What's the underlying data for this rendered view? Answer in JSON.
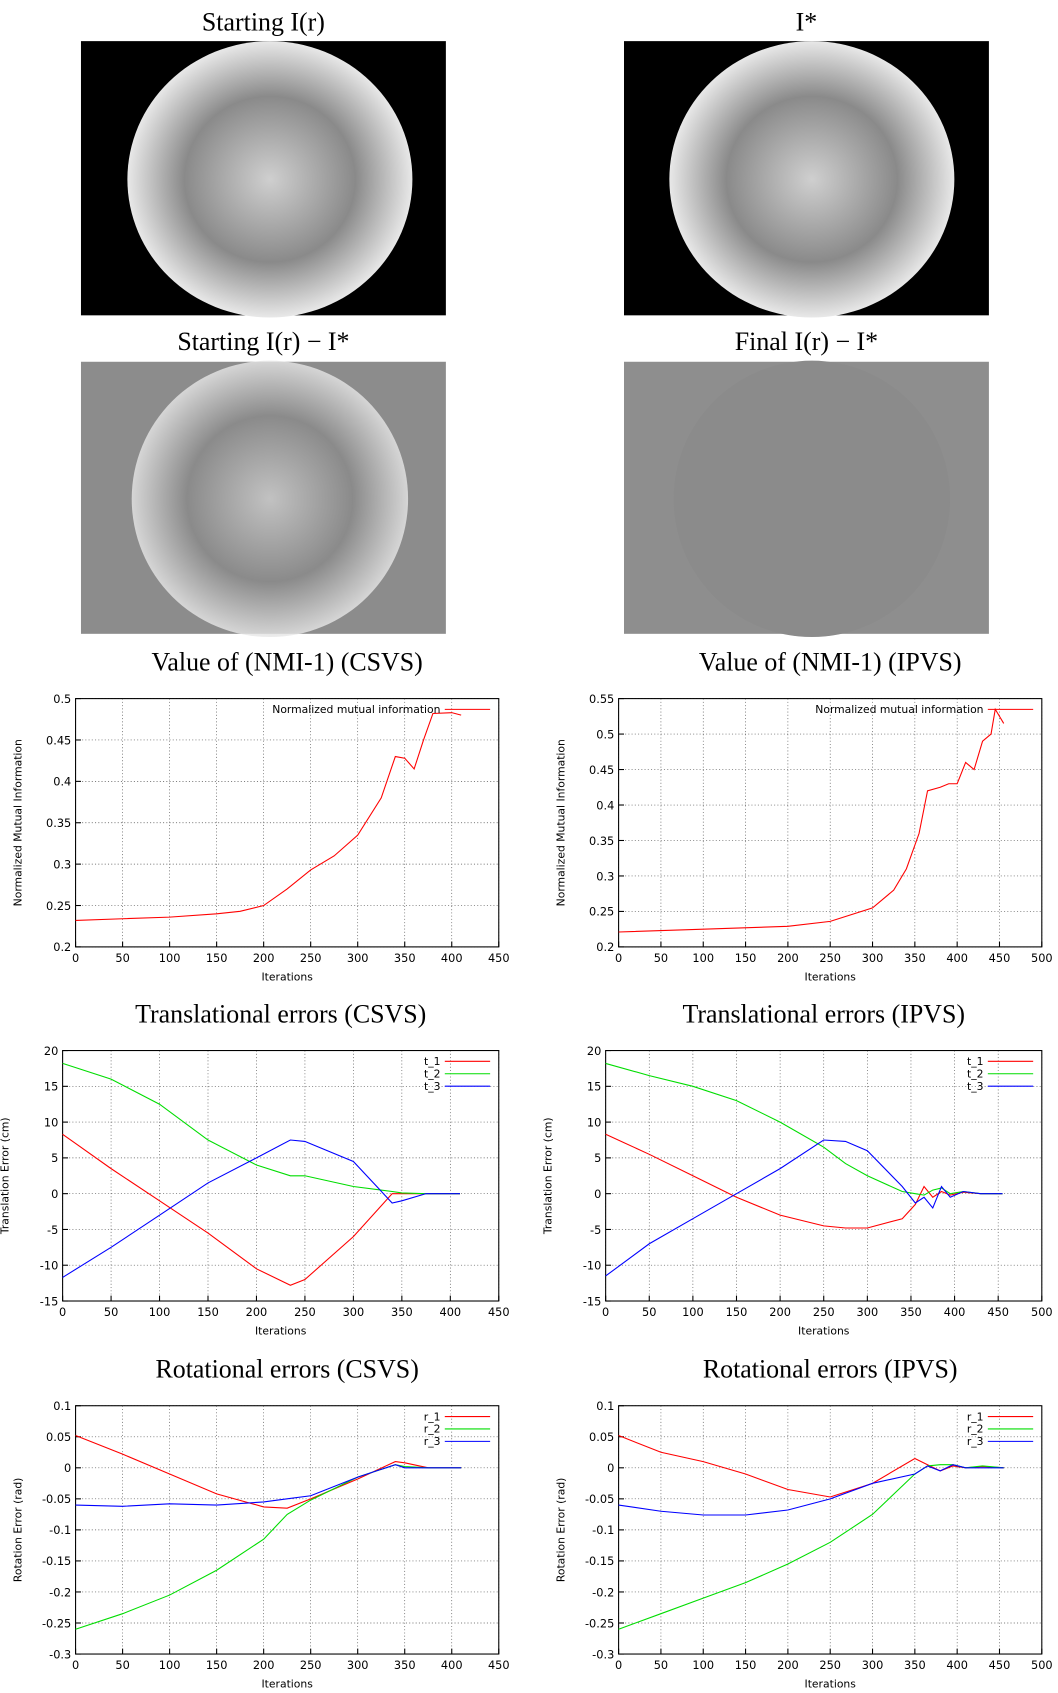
{
  "images": [
    {
      "title": "Starting I(r)"
    },
    {
      "title": "I*"
    },
    {
      "title": "Starting I(r) − I*"
    },
    {
      "title": "Final I(r) − I*"
    }
  ],
  "chart_data": [
    {
      "type": "line",
      "title": "Value of (NMI-1) (CSVS)",
      "xlabel": "Iterations",
      "ylabel": "Normalized Mutual Information",
      "xlim": [
        0,
        450
      ],
      "ylim": [
        0.2,
        0.5
      ],
      "xticks": [
        0,
        50,
        100,
        150,
        200,
        250,
        300,
        350,
        400,
        450
      ],
      "yticks": [
        0.2,
        0.25,
        0.3,
        0.35,
        0.4,
        0.45,
        0.5
      ],
      "grid": true,
      "legend": "upper right",
      "x": [
        0,
        50,
        100,
        150,
        175,
        200,
        225,
        250,
        275,
        300,
        325,
        340,
        350,
        360,
        370,
        380,
        400,
        410
      ],
      "series": [
        {
          "name": "Normalized mutual information",
          "color": "#ff0000",
          "values": [
            0.232,
            0.234,
            0.236,
            0.24,
            0.243,
            0.25,
            0.27,
            0.293,
            0.31,
            0.335,
            0.38,
            0.43,
            0.428,
            0.415,
            0.45,
            0.482,
            0.483,
            0.48
          ]
        }
      ]
    },
    {
      "type": "line",
      "title": "Value of (NMI-1) (IPVS)",
      "xlabel": "Iterations",
      "ylabel": "Normalized Mutual Information",
      "xlim": [
        0,
        500
      ],
      "ylim": [
        0.2,
        0.55
      ],
      "xticks": [
        0,
        50,
        100,
        150,
        200,
        250,
        300,
        350,
        400,
        450,
        500
      ],
      "yticks": [
        0.2,
        0.25,
        0.3,
        0.35,
        0.4,
        0.45,
        0.5,
        0.55
      ],
      "grid": true,
      "legend": "upper right",
      "x": [
        0,
        100,
        200,
        250,
        300,
        325,
        340,
        355,
        365,
        380,
        390,
        400,
        410,
        420,
        430,
        440,
        445,
        455
      ],
      "series": [
        {
          "name": "Normalized mutual information",
          "color": "#ff0000",
          "values": [
            0.221,
            0.225,
            0.229,
            0.236,
            0.255,
            0.28,
            0.31,
            0.36,
            0.42,
            0.425,
            0.43,
            0.43,
            0.46,
            0.45,
            0.49,
            0.5,
            0.535,
            0.515
          ]
        }
      ]
    },
    {
      "type": "line",
      "title": "Translational errors (CSVS)",
      "xlabel": "Iterations",
      "ylabel": "Translation Error (cm)",
      "xlim": [
        0,
        450
      ],
      "ylim": [
        -15,
        20
      ],
      "xticks": [
        0,
        50,
        100,
        150,
        200,
        250,
        300,
        350,
        400,
        450
      ],
      "yticks": [
        -15,
        -10,
        -5,
        0,
        5,
        10,
        15,
        20
      ],
      "grid": true,
      "legend": "upper right",
      "x": [
        0,
        50,
        100,
        150,
        200,
        235,
        250,
        300,
        340,
        350,
        375,
        410
      ],
      "series": [
        {
          "name": "t_1",
          "color": "#ff0000",
          "values": [
            8.3,
            3.5,
            -1,
            -5.5,
            -10.5,
            -12.8,
            -12,
            -6,
            0,
            0,
            0,
            0
          ]
        },
        {
          "name": "t_2",
          "color": "#00dd00",
          "values": [
            18.2,
            16,
            12.5,
            7.5,
            4,
            2.5,
            2.5,
            1,
            0.3,
            0.1,
            0,
            0
          ]
        },
        {
          "name": "t_3",
          "color": "#0000ff",
          "values": [
            -11.7,
            -7.5,
            -3,
            1.5,
            5,
            7.5,
            7.3,
            4.5,
            -1.3,
            -1,
            0,
            0
          ]
        }
      ]
    },
    {
      "type": "line",
      "title": "Translational errors (IPVS)",
      "xlabel": "Iterations",
      "ylabel": "Translation Error (cm)",
      "xlim": [
        0,
        500
      ],
      "ylim": [
        -15,
        20
      ],
      "xticks": [
        0,
        50,
        100,
        150,
        200,
        250,
        300,
        350,
        400,
        450,
        500
      ],
      "yticks": [
        -15,
        -10,
        -5,
        0,
        5,
        10,
        15,
        20
      ],
      "grid": true,
      "legend": "upper right",
      "x": [
        0,
        50,
        100,
        150,
        200,
        250,
        275,
        300,
        340,
        355,
        365,
        375,
        385,
        395,
        410,
        430,
        455
      ],
      "series": [
        {
          "name": "t_1",
          "color": "#ff0000",
          "values": [
            8.3,
            5.5,
            2.5,
            -0.5,
            -3,
            -4.5,
            -4.8,
            -4.8,
            -3.5,
            -1.5,
            1,
            -0.5,
            0.3,
            -0.2,
            0.2,
            0,
            0
          ]
        },
        {
          "name": "t_2",
          "color": "#00dd00",
          "values": [
            18.2,
            16.5,
            15,
            13,
            10,
            6.5,
            4.2,
            2.5,
            0.3,
            0,
            -0.2,
            0.5,
            0.8,
            0,
            0.3,
            0,
            0
          ]
        },
        {
          "name": "t_3",
          "color": "#0000ff",
          "values": [
            -11.5,
            -7,
            -3.5,
            0,
            3.5,
            7.5,
            7.3,
            6,
            1,
            -1.3,
            -0.5,
            -2,
            1,
            -0.5,
            0.3,
            0,
            0
          ]
        }
      ]
    },
    {
      "type": "line",
      "title": "Rotational errors (CSVS)",
      "xlabel": "Iterations",
      "ylabel": "Rotation Error (rad)",
      "xlim": [
        0,
        450
      ],
      "ylim": [
        -0.3,
        0.1
      ],
      "xticks": [
        0,
        50,
        100,
        150,
        200,
        250,
        300,
        350,
        400,
        450
      ],
      "yticks": [
        -0.3,
        -0.25,
        -0.2,
        -0.15,
        -0.1,
        -0.05,
        0,
        0.05,
        0.1
      ],
      "grid": true,
      "legend": "upper right",
      "x": [
        0,
        50,
        100,
        150,
        200,
        225,
        250,
        300,
        340,
        350,
        375,
        410
      ],
      "series": [
        {
          "name": "r_1",
          "color": "#ff0000",
          "values": [
            0.052,
            0.022,
            -0.01,
            -0.042,
            -0.063,
            -0.065,
            -0.05,
            -0.018,
            0.01,
            0.008,
            0,
            0
          ]
        },
        {
          "name": "r_2",
          "color": "#00dd00",
          "values": [
            -0.26,
            -0.235,
            -0.205,
            -0.165,
            -0.115,
            -0.075,
            -0.052,
            -0.015,
            0.005,
            0.002,
            0,
            0
          ]
        },
        {
          "name": "r_3",
          "color": "#0000ff",
          "values": [
            -0.06,
            -0.062,
            -0.058,
            -0.06,
            -0.055,
            -0.05,
            -0.045,
            -0.015,
            0.005,
            0,
            0,
            0
          ]
        }
      ]
    },
    {
      "type": "line",
      "title": "Rotational errors (IPVS)",
      "xlabel": "Iterations",
      "ylabel": "Rotation Error (rad)",
      "xlim": [
        0,
        500
      ],
      "ylim": [
        -0.3,
        0.1
      ],
      "xticks": [
        0,
        50,
        100,
        150,
        200,
        250,
        300,
        350,
        400,
        450,
        500
      ],
      "yticks": [
        -0.3,
        -0.25,
        -0.2,
        -0.15,
        -0.1,
        -0.05,
        0,
        0.05,
        0.1
      ],
      "grid": true,
      "legend": "upper right",
      "x": [
        0,
        50,
        100,
        150,
        200,
        250,
        300,
        350,
        365,
        380,
        395,
        410,
        430,
        455
      ],
      "series": [
        {
          "name": "r_1",
          "color": "#ff0000",
          "values": [
            0.052,
            0.025,
            0.01,
            -0.01,
            -0.035,
            -0.047,
            -0.025,
            0.015,
            0.005,
            -0.005,
            0.003,
            0,
            0.002,
            0
          ]
        },
        {
          "name": "r_2",
          "color": "#00dd00",
          "values": [
            -0.26,
            -0.235,
            -0.21,
            -0.185,
            -0.155,
            -0.12,
            -0.075,
            -0.01,
            0.003,
            0.005,
            0.005,
            0,
            0.003,
            0
          ]
        },
        {
          "name": "r_3",
          "color": "#0000ff",
          "values": [
            -0.06,
            -0.07,
            -0.076,
            -0.076,
            -0.068,
            -0.05,
            -0.025,
            -0.01,
            0.003,
            -0.005,
            0.005,
            0,
            0,
            0
          ]
        }
      ]
    }
  ]
}
